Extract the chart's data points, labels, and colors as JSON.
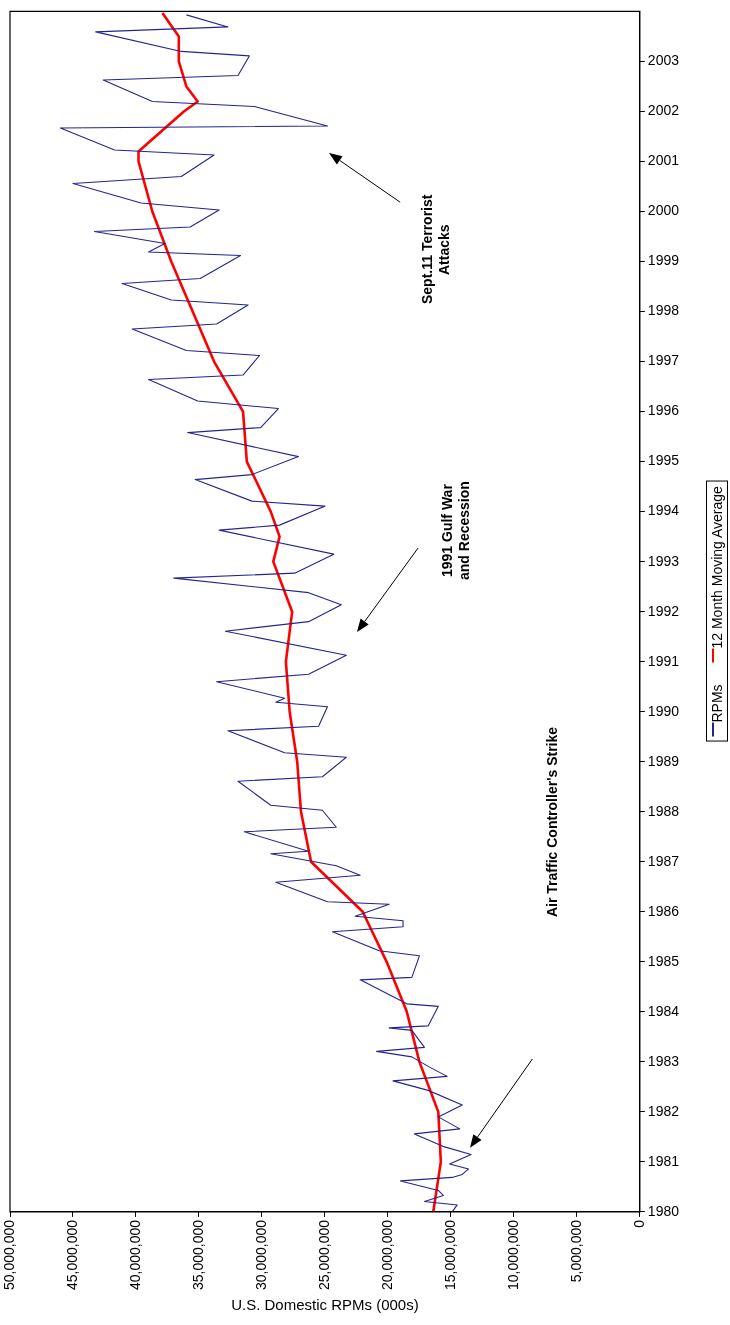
{
  "chart_data": {
    "type": "line",
    "orientation": "horizontal",
    "xlabel": "U.S. Domestic RPMs (000s)",
    "xlim": [
      50000000,
      0
    ],
    "xticks": [
      {
        "value": 0,
        "label": "0"
      },
      {
        "value": 5000000,
        "label": "5,000,000"
      },
      {
        "value": 10000000,
        "label": "10,000,000"
      },
      {
        "value": 15000000,
        "label": "15,000,000"
      },
      {
        "value": 20000000,
        "label": "20,000,000"
      },
      {
        "value": 25000000,
        "label": "25,000,000"
      },
      {
        "value": 30000000,
        "label": "30,000,000"
      },
      {
        "value": 35000000,
        "label": "35,000,000"
      },
      {
        "value": 40000000,
        "label": "40,000,000"
      },
      {
        "value": 45000000,
        "label": "45,000,000"
      },
      {
        "value": 50000000,
        "label": "50,000,000"
      }
    ],
    "ylim": [
      1980,
      2004
    ],
    "yticks": [
      1980,
      1981,
      1982,
      1983,
      1984,
      1985,
      1986,
      1987,
      1988,
      1989,
      1990,
      1991,
      1992,
      1993,
      1994,
      1995,
      1996,
      1997,
      1998,
      1999,
      2000,
      2001,
      2002,
      2003
    ],
    "grid": false,
    "legend": "right",
    "marker": "none",
    "series": [
      {
        "name": "RPMs",
        "color": "#24248f",
        "x": [
          1980.0,
          1980.14,
          1980.21,
          1980.33,
          1980.43,
          1980.62,
          1980.69,
          1980.75,
          1980.86,
          1980.96,
          1981.15,
          1981.3,
          1981.56,
          1981.66,
          1981.9,
          1982.14,
          1982.43,
          1982.62,
          1982.71,
          1982.91,
          1983.1,
          1983.21,
          1983.29,
          1983.63,
          1983.68,
          1983.72,
          1984.11,
          1984.16,
          1984.64,
          1984.69,
          1985.12,
          1985.22,
          1985.6,
          1985.7,
          1985.82,
          1985.91,
          1986.15,
          1986.2,
          1986.59,
          1986.73,
          1986.92,
          1987.16,
          1987.21,
          1987.6,
          1987.69,
          1988.03,
          1988.13,
          1988.61,
          1988.7,
          1989.09,
          1989.18,
          1989.62,
          1989.71,
          1990.1,
          1990.19,
          1990.27,
          1990.6,
          1990.75,
          1991.13,
          1991.61,
          1991.8,
          1992.14,
          1992.38,
          1992.67,
          1992.77,
          1993.15,
          1993.63,
          1993.73,
          1994.11,
          1994.21,
          1994.64,
          1994.74,
          1995.1,
          1995.58,
          1995.68,
          1996.06,
          1996.21,
          1996.64,
          1996.73,
          1997.12,
          1997.22,
          1997.65,
          1997.75,
          1998.13,
          1998.23,
          1998.56,
          1998.66,
          1999.12,
          1999.19,
          1999.36,
          1999.6,
          1999.69,
          2000.03,
          2000.17,
          2000.56,
          2000.7,
          2001.13,
          2001.23,
          2001.67,
          2001.71,
          2002.1,
          2002.2,
          2002.63,
          2002.72,
          2003.11,
          2003.2,
          2003.59,
          2003.69,
          2003.93
        ],
        "values": [
          14900000,
          14500000,
          17100000,
          15600000,
          16000000,
          19000000,
          14900000,
          14100000,
          13600000,
          15100000,
          13400000,
          15500000,
          17900000,
          14300000,
          16000000,
          14100000,
          16800000,
          19600000,
          15300000,
          16800000,
          18100000,
          20900000,
          17100000,
          18100000,
          19900000,
          16800000,
          16000000,
          18500000,
          22200000,
          18100000,
          17500000,
          20700000,
          24400000,
          18800000,
          18800000,
          22600000,
          19900000,
          24800000,
          28900000,
          22200000,
          24100000,
          29300000,
          26300000,
          31400000,
          24100000,
          25200000,
          29300000,
          31900000,
          25200000,
          23300000,
          28200000,
          32700000,
          25500000,
          24800000,
          28900000,
          28200000,
          33600000,
          26300000,
          23300000,
          32900000,
          26300000,
          23700000,
          26300000,
          37000000,
          27400000,
          24300000,
          33400000,
          28600000,
          25000000,
          30800000,
          35300000,
          30800000,
          27100000,
          35900000,
          30100000,
          28700000,
          35100000,
          39000000,
          31500000,
          30200000,
          36000000,
          40300000,
          33600000,
          31100000,
          37200000,
          41100000,
          34900000,
          31700000,
          39000000,
          37700000,
          43300000,
          35700000,
          33400000,
          39600000,
          45000000,
          36400000,
          33800000,
          41700000,
          46000000,
          24800000,
          30600000,
          38700000,
          42600000,
          31900000,
          31000000,
          36400000,
          43200000,
          32700000,
          36000000
        ]
      },
      {
        "name": "12 Month Moving Average",
        "color": "#ff0000",
        "x": [
          1980,
          1981,
          1982,
          1983,
          1984,
          1985,
          1986,
          1987,
          1988,
          1989,
          1990,
          1991,
          1992,
          1993,
          1993.5,
          1994,
          1995,
          1996,
          1997,
          1998,
          1999,
          2000,
          2001,
          2001.2,
          2002,
          2002.2,
          2002.5,
          2003,
          2003.5,
          2003.97
        ],
        "values": [
          16400000,
          15800000,
          16000000,
          17500000,
          18500000,
          20100000,
          22000000,
          26100000,
          26900000,
          27200000,
          27800000,
          28100000,
          27600000,
          29100000,
          28600000,
          29300000,
          31200000,
          31500000,
          33800000,
          35500000,
          37200000,
          38700000,
          39800000,
          39800000,
          36200000,
          35100000,
          36000000,
          36600000,
          36600000,
          37900000
        ]
      }
    ],
    "annotations": [
      "Air Traffic Controller's Strike",
      "1991 Gulf War and Recession",
      "Sept.11 Terrorist Attacks"
    ]
  }
}
